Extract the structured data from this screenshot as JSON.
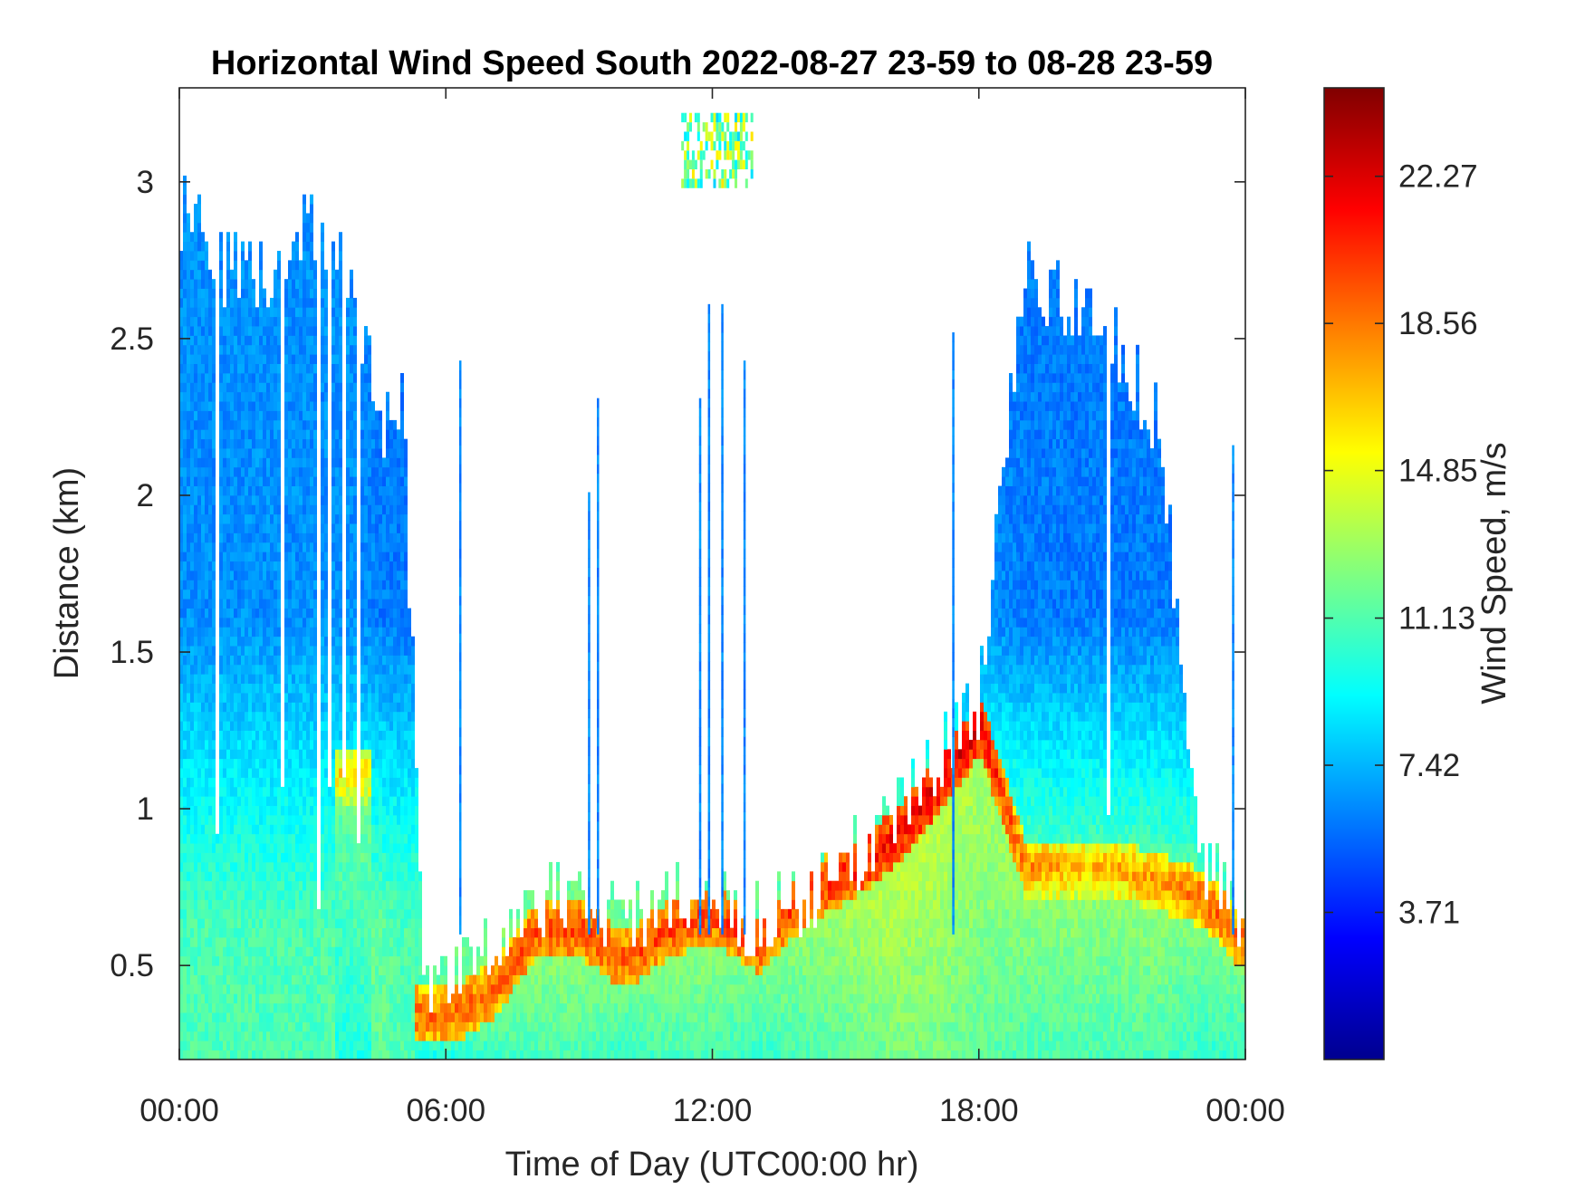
{
  "chart_data": {
    "type": "heatmap",
    "title": "Horizontal Wind Speed South 2022-08-27 23-59 to 08-28 23-59",
    "xlabel": "Time of Day (UTC00:00 hr)",
    "ylabel": "Distance (km)",
    "x_ticks": [
      "00:00",
      "06:00",
      "12:00",
      "18:00",
      "00:00"
    ],
    "x_range_hours": [
      0,
      24
    ],
    "y_ticks": [
      0.5,
      1,
      1.5,
      2,
      2.5,
      3
    ],
    "y_tick_labels": [
      "0.5",
      "1",
      "1.5",
      "2",
      "2.5",
      "3"
    ],
    "ylim": [
      0.2,
      3.3
    ],
    "colorbar": {
      "label": "Wind Speed, m/s",
      "ticks": [
        3.71,
        7.42,
        11.13,
        14.85,
        18.56,
        22.27
      ],
      "tick_labels": [
        "3.71",
        "7.42",
        "11.13",
        "14.85",
        "18.56",
        "22.27"
      ],
      "range": [
        0,
        24.5
      ],
      "colormap": "jet"
    },
    "colormap_stops": [
      "#00008f",
      "#0000ff",
      "#0080ff",
      "#00ffff",
      "#80ff80",
      "#ffff00",
      "#ff8000",
      "#ff0000",
      "#800000"
    ],
    "profile_hours": [
      0,
      1,
      2,
      3,
      4,
      4.5,
      5,
      5.5,
      6,
      7,
      8,
      9,
      10,
      11,
      12,
      13,
      14,
      15,
      16,
      17,
      18,
      19,
      20,
      21,
      22,
      23,
      24
    ],
    "echo_top_km": [
      2.9,
      2.7,
      2.7,
      2.85,
      2.6,
      2.2,
      2.25,
      0.42,
      0.4,
      0.55,
      0.7,
      0.72,
      0.62,
      0.72,
      0.68,
      0.62,
      0.68,
      0.82,
      0.95,
      1.15,
      1.35,
      2.7,
      2.6,
      2.5,
      2.2,
      0.85,
      0.62
    ],
    "jet_height_km": [
      null,
      null,
      null,
      null,
      1.1,
      null,
      null,
      0.33,
      0.32,
      0.4,
      0.6,
      0.6,
      0.5,
      0.6,
      0.65,
      0.55,
      0.7,
      0.78,
      0.88,
      1.05,
      1.25,
      0.8,
      0.8,
      0.8,
      0.75,
      0.7,
      0.55
    ],
    "surface_speed_ms": [
      9.5,
      9.5,
      9.5,
      9.5,
      10,
      10,
      9.5,
      9.5,
      10,
      10.5,
      11,
      11,
      10.5,
      11,
      11,
      10.5,
      11,
      11.5,
      12,
      12,
      11.5,
      11,
      11,
      11,
      11,
      10.5,
      10.5
    ],
    "jet_speed_ms": [
      null,
      null,
      null,
      null,
      16,
      null,
      null,
      19,
      19,
      19,
      20,
      20,
      19.5,
      20,
      20,
      20,
      20,
      21,
      21.5,
      22,
      22,
      18,
      17,
      17,
      18,
      19,
      19
    ],
    "upper_speed_ms": [
      6.5,
      6.5,
      6.5,
      6.5,
      6.5,
      6,
      6,
      null,
      null,
      null,
      null,
      null,
      null,
      null,
      null,
      null,
      null,
      null,
      null,
      null,
      6.5,
      6,
      6,
      6,
      6,
      6,
      6
    ],
    "isolated_spikes": [
      {
        "hour": 6.3,
        "top_km": 2.4
      },
      {
        "hour": 9.2,
        "top_km": 2.0
      },
      {
        "hour": 9.4,
        "top_km": 2.3
      },
      {
        "hour": 11.7,
        "top_km": 2.3
      },
      {
        "hour": 11.9,
        "top_km": 2.6
      },
      {
        "hour": 12.2,
        "top_km": 2.6
      },
      {
        "hour": 12.7,
        "top_km": 2.4
      },
      {
        "hour": 17.4,
        "top_km": 2.5
      },
      {
        "hour": 23.7,
        "top_km": 2.15
      }
    ],
    "upper_echo_patch": {
      "hours": [
        11.3,
        12.9
      ],
      "km": [
        2.98,
        3.2
      ],
      "speed_ms": 12
    }
  }
}
